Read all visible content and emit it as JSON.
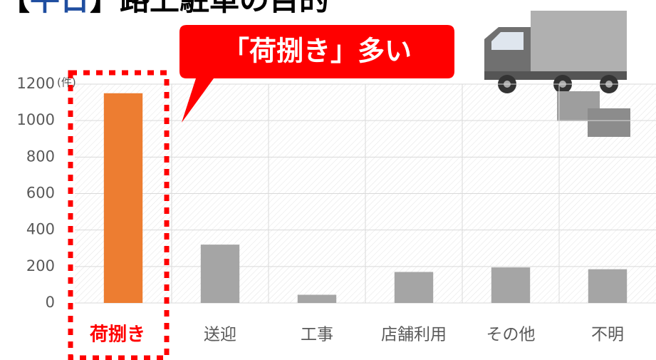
{
  "chart_data": {
    "type": "bar",
    "title_parts": [
      "【",
      "平日",
      "】路上駐車の目的"
    ],
    "annotation": "「荷捌き」多い",
    "unit_label": "(件)",
    "categories": [
      "荷捌き",
      "送迎",
      "工事",
      "店舗利用",
      "その他",
      "不明"
    ],
    "values": [
      1150,
      320,
      45,
      170,
      195,
      185
    ],
    "colors": [
      "#ed7d31",
      "#a5a5a5",
      "#a5a5a5",
      "#a5a5a5",
      "#a5a5a5",
      "#a5a5a5"
    ],
    "highlight_color": "#ff0000",
    "ylim": [
      0,
      1200
    ],
    "yticks": [
      0,
      200,
      400,
      600,
      800,
      1000,
      1200
    ],
    "grid": true
  }
}
